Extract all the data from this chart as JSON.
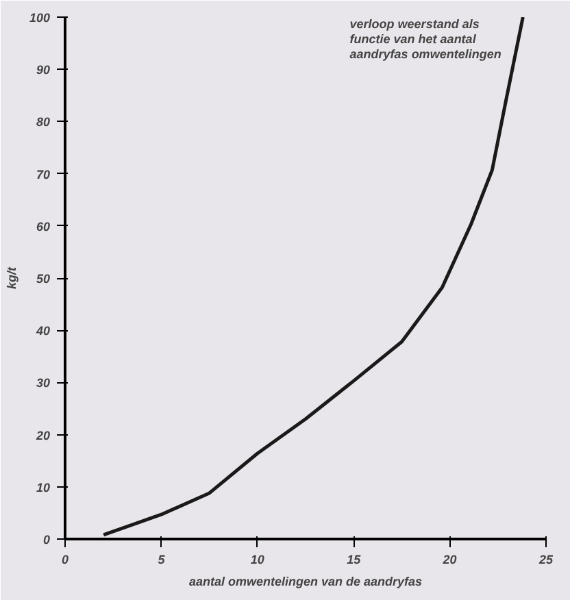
{
  "chart_data": {
    "type": "line",
    "title": "verloop weerstand als\nfunctie van het aantal\naandryfas omwentelingen",
    "xlabel": "aantal omwentelingen van de aandryfas",
    "ylabel": "kg/t",
    "series": [
      {
        "color": "#1a1a1a",
        "x": [
          2.0,
          5.0,
          7.5,
          10.0,
          12.5,
          15.0,
          17.5,
          19.6,
          21.1,
          22.2,
          22.9,
          23.8
        ],
        "values": [
          0.8,
          4.7,
          8.8,
          16.4,
          23,
          30.3,
          37.8,
          48.2,
          60.3,
          70.7,
          83.7,
          100
        ]
      }
    ],
    "xlim": [
      0,
      25
    ],
    "ylim": [
      0,
      100
    ],
    "xticks": [
      0,
      5,
      10,
      15,
      20,
      25
    ],
    "yticks": [
      0,
      10,
      20,
      30,
      40,
      50,
      60,
      70,
      80,
      90,
      100
    ],
    "marker": "none",
    "line_style": "solid"
  }
}
